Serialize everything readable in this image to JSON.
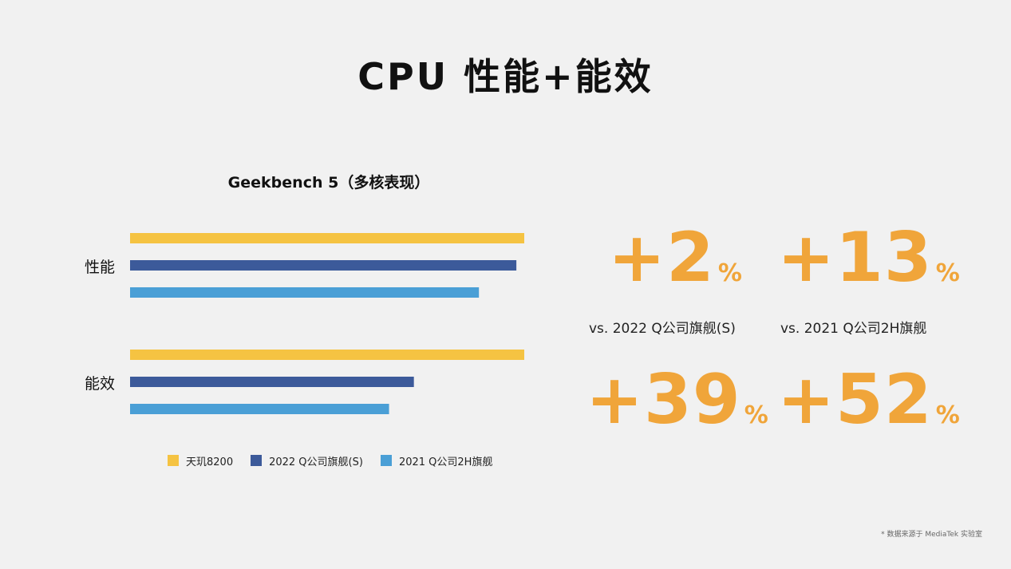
{
  "title": "CPU 性能+能效",
  "chart_data": {
    "type": "bar",
    "orientation": "horizontal",
    "title": "Geekbench 5（多核表现）",
    "categories": [
      "性能",
      "能效"
    ],
    "series": [
      {
        "name": "天玑8200",
        "color": "#f5c342",
        "values": [
          1.0,
          1.0
        ]
      },
      {
        "name": "2022 Q公司旗舰(S)",
        "color": "#3c5a9a",
        "values": [
          0.98,
          0.72
        ]
      },
      {
        "name": "2021 Q公司2H旗舰",
        "color": "#4a9fd6",
        "values": [
          0.885,
          0.657
        ]
      }
    ],
    "xlim": [
      0,
      1.0
    ],
    "grid": false,
    "legend": "bottom"
  },
  "stats": [
    {
      "value": "+2",
      "unit": "%",
      "label": "vs. 2022 Q公司旗舰(S)"
    },
    {
      "value": "+13",
      "unit": "%",
      "label": "vs. 2021 Q公司2H旗舰"
    },
    {
      "value": "+39",
      "unit": "%"
    },
    {
      "value": "+52",
      "unit": "%"
    }
  ],
  "footnote": "* 数据来源于 MediaTek 实验室",
  "colors": {
    "accent": "#f0a53a",
    "background": "#f1f1f1"
  }
}
